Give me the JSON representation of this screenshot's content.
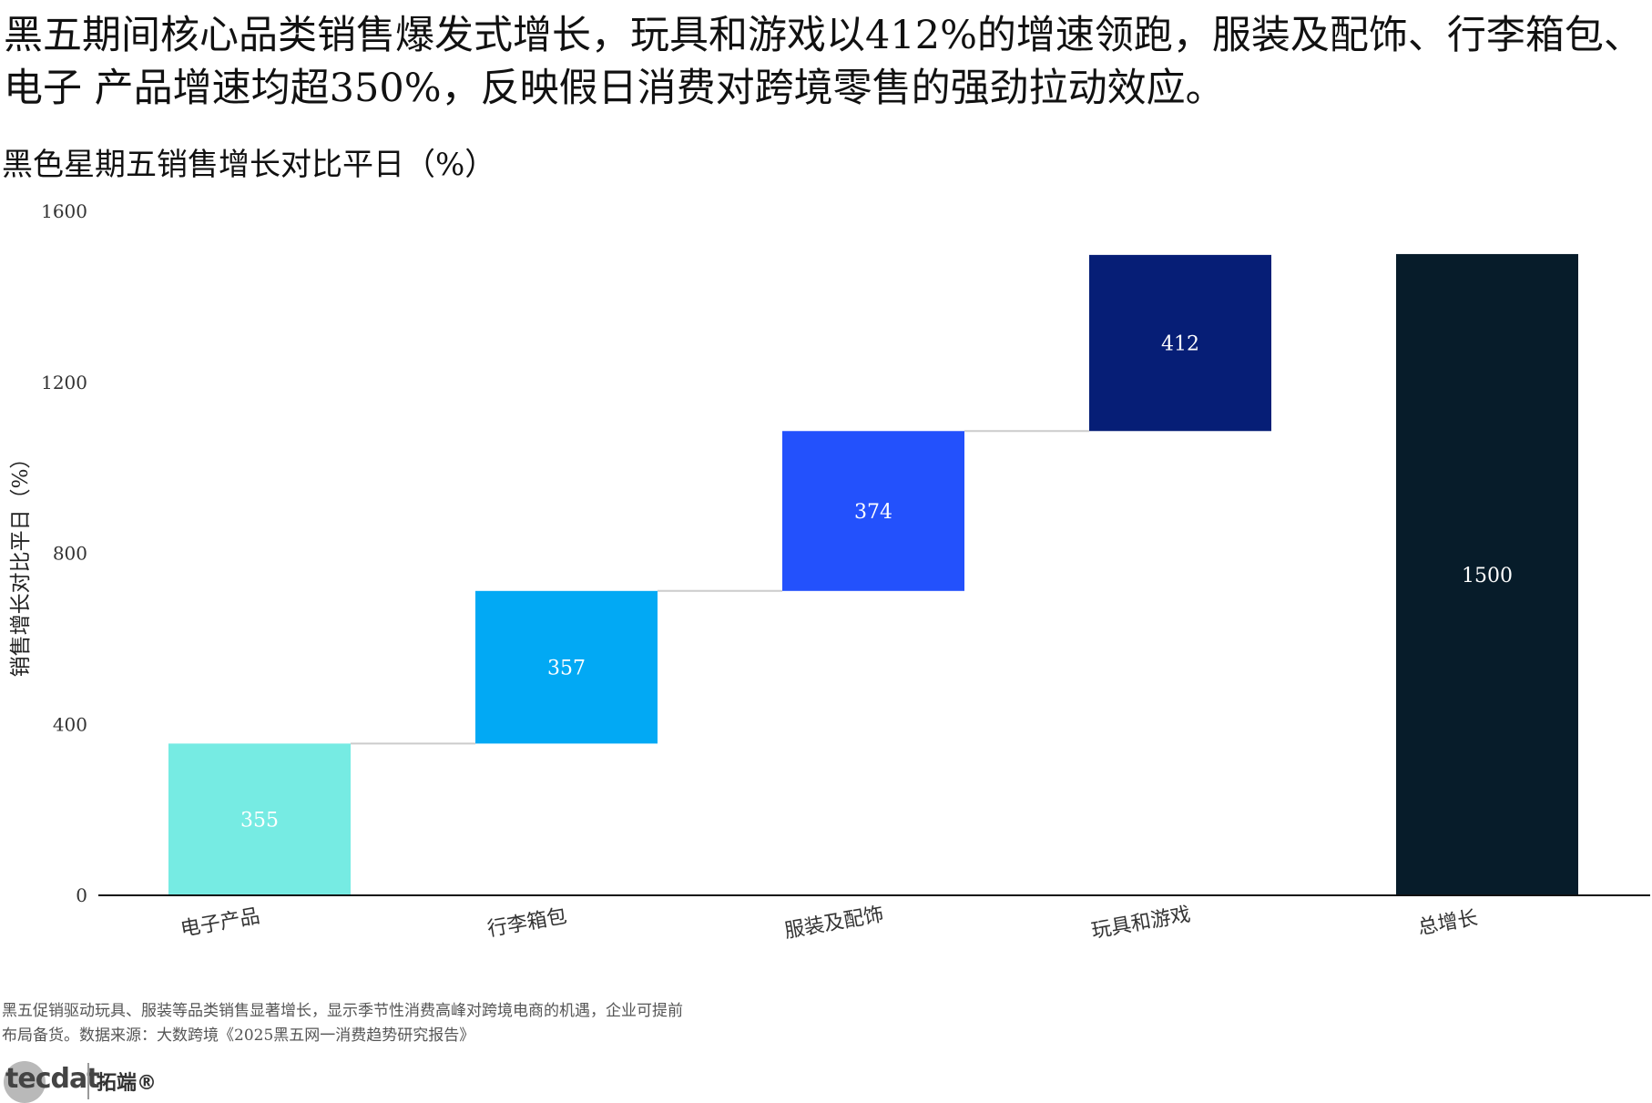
{
  "headline": "黑五期间核心品类销售爆发式增长，玩具和游戏以412%的增速领跑，服装及配饰、行李箱包、电子 产品增速均超350%，反映假日消费对跨境零售的强劲拉动效应。",
  "chart_data": {
    "type": "bar",
    "subtype": "waterfall",
    "title": "黑色星期五销售增长对比平日（%）",
    "ylabel": "销售增长对比平日（%）",
    "xlabel": "",
    "ylim": [
      0,
      1600
    ],
    "yticks": [
      "0",
      "400",
      "800",
      "1200",
      "1600"
    ],
    "categories": [
      "电子产品",
      "行李箱包",
      "服装及配饰",
      "玩具和游戏",
      "总增长"
    ],
    "values": [
      355,
      357,
      374,
      412,
      1500
    ],
    "value_labels": [
      "355",
      "357",
      "374",
      "412",
      "1500"
    ],
    "is_total": [
      false,
      false,
      false,
      false,
      true
    ],
    "colors": [
      "#76ebe3",
      "#02a9f4",
      "#2351fc",
      "#061e76",
      "#071c2a"
    ],
    "connector_color": "#cccccc",
    "grid": false,
    "legend": "none"
  },
  "footnote": {
    "line1": "黑五促销驱动玩具、服装等品类销售显著增长，显示季节性消费高峰对跨境电商的机遇，企业可提前",
    "line2": "布局备货。数据来源：大数跨境《2025黑五网一消费趋势研究报告》"
  },
  "logo": {
    "mark": "tecdat",
    "name": "拓端®"
  }
}
